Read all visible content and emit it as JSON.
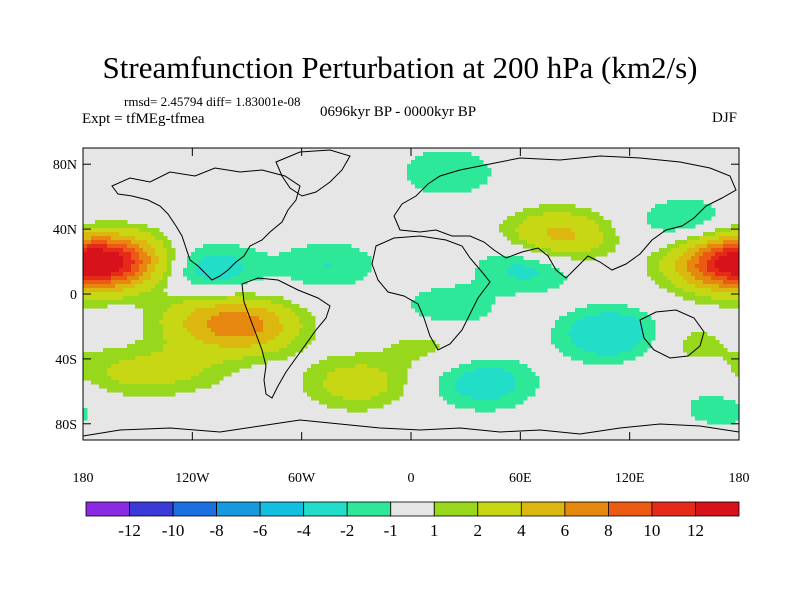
{
  "title": "Streamfunction Perturbation at 200 hPa (km2/s)",
  "rmsd_line": "rmsd= 2.45794 diff= 1.83001e-08",
  "expt_line": "Expt = tfMEg-tfmea",
  "period_line": "0696kyr BP - 0000kyr BP",
  "season": "DJF",
  "lat_ticks": [
    "80N",
    "40N",
    "0",
    "40S",
    "80S"
  ],
  "lon_ticks": [
    "180",
    "120W",
    "60W",
    "0",
    "60E",
    "120E",
    "180"
  ],
  "colorbar": {
    "labels": [
      "-12",
      "-10",
      "-8",
      "-6",
      "-4",
      "-2",
      "-1",
      "1",
      "2",
      "4",
      "6",
      "8",
      "10",
      "12"
    ],
    "colors": [
      "#8a2be2",
      "#3a3ad8",
      "#1c6fe0",
      "#1799e0",
      "#12bfe0",
      "#22ddc8",
      "#2ee89a",
      "#e6e6e6",
      "#97d71c",
      "#c8d714",
      "#dcb70f",
      "#e6870f",
      "#ea5a12",
      "#e62a1a",
      "#d8121a"
    ]
  },
  "map_data": {
    "levels": [
      -12,
      -10,
      -8,
      -6,
      -4,
      -2,
      -1,
      1,
      2,
      4,
      6,
      8,
      10,
      12
    ],
    "lon_range": [
      -180,
      180
    ],
    "lat_range": [
      -90,
      90
    ],
    "anomaly_centers": [
      {
        "lon": -165,
        "lat": 20,
        "value": 11
      },
      {
        "lon": 170,
        "lat": 18,
        "value": 8
      },
      {
        "lon": 80,
        "lat": 35,
        "value": 5
      },
      {
        "lon": -90,
        "lat": -20,
        "value": 6
      },
      {
        "lon": -115,
        "lat": -15,
        "value": 3
      },
      {
        "lon": -30,
        "lat": -55,
        "value": 3
      },
      {
        "lon": 40,
        "lat": -55,
        "value": -3
      },
      {
        "lon": -110,
        "lat": 15,
        "value": -3
      },
      {
        "lon": -45,
        "lat": 18,
        "value": -2
      },
      {
        "lon": 65,
        "lat": 18,
        "value": -3
      },
      {
        "lon": 110,
        "lat": -25,
        "value": -4
      },
      {
        "lon": 20,
        "lat": -10,
        "value": -2
      },
      {
        "lon": -100,
        "lat": 65,
        "value": -1
      },
      {
        "lon": 20,
        "lat": 75,
        "value": -2
      },
      {
        "lon": -125,
        "lat": -45,
        "value": 2
      },
      {
        "lon": -160,
        "lat": -50,
        "value": 2
      },
      {
        "lon": 10,
        "lat": -30,
        "value": 1.5
      },
      {
        "lon": 150,
        "lat": -30,
        "value": 1.5
      },
      {
        "lon": 150,
        "lat": 45,
        "value": -2
      },
      {
        "lon": 170,
        "lat": -70,
        "value": -1.5
      }
    ]
  }
}
